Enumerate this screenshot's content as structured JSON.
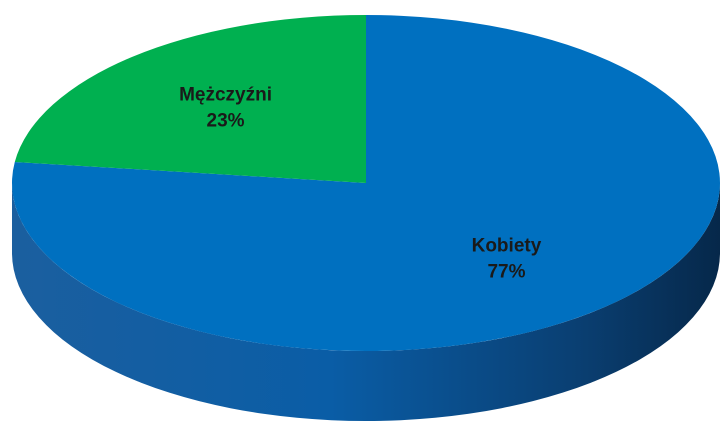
{
  "chart_data": {
    "type": "pie",
    "categories": [
      "Kobiety",
      "Mężczyźni"
    ],
    "values": [
      77,
      23
    ],
    "value_labels": [
      "77%",
      "23%"
    ],
    "colors": [
      "#0070c0",
      "#00b050"
    ]
  }
}
